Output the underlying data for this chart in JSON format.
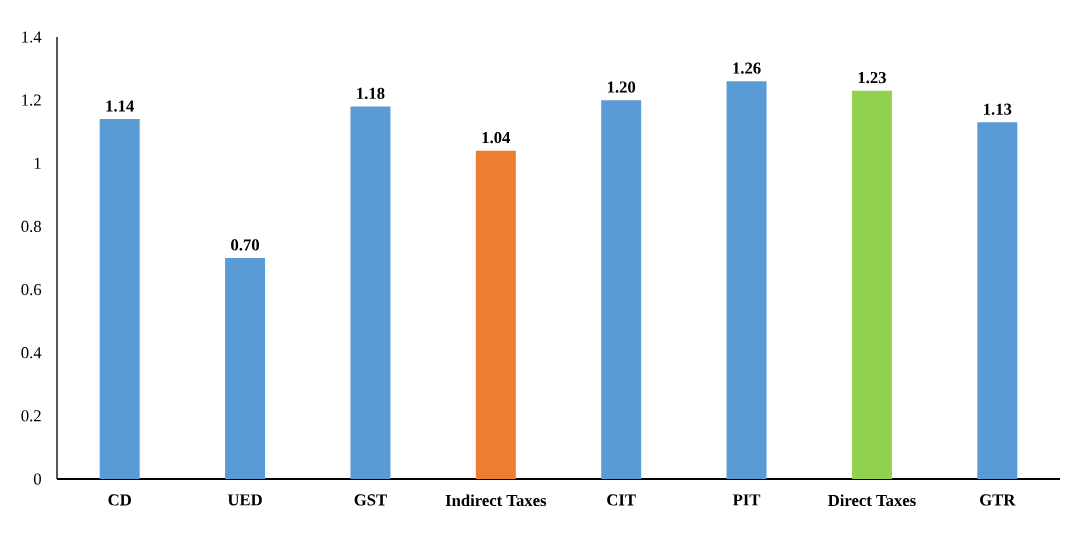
{
  "chart_data": {
    "type": "bar",
    "categories": [
      "CD",
      "UED",
      "GST",
      "Indirect Taxes",
      "CIT",
      "PIT",
      "Direct Taxes",
      "GTR"
    ],
    "values": [
      1.14,
      0.7,
      1.18,
      1.04,
      1.2,
      1.26,
      1.23,
      1.13
    ],
    "colors": [
      "#5b9bd5",
      "#5b9bd5",
      "#5b9bd5",
      "#ed7d31",
      "#5b9bd5",
      "#5b9bd5",
      "#92d050",
      "#5b9bd5"
    ],
    "value_labels": [
      "1.14",
      "0.70",
      "1.18",
      "1.04",
      "1.20",
      "1.26",
      "1.23",
      "1.13"
    ],
    "ylim": [
      0,
      1.4
    ],
    "yticks": [
      0,
      0.2,
      0.4,
      0.6,
      0.8,
      1,
      1.2,
      1.4
    ],
    "grid": false
  }
}
